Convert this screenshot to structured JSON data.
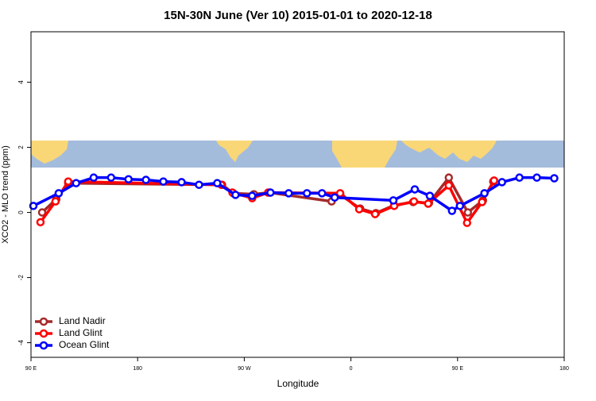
{
  "chart_data": {
    "type": "line",
    "title": "15N-30N June (Ver 10)   2015-01-01 to 2020-12-18",
    "x_label": "Longitude",
    "y_label": "XCO2 - MLO trend (ppm)",
    "xlim": [
      90,
      540
    ],
    "ylim": [
      -4.45,
      5.55
    ],
    "xticks": [
      {
        "value": 90,
        "label": "90 E"
      },
      180,
      {
        "value": 270,
        "label": "90 W"
      },
      {
        "value": 360,
        "label": "0"
      },
      {
        "value": 450,
        "label": "90 E"
      },
      {
        "value": 540,
        "label": "180"
      }
    ],
    "yticks": [
      -4,
      -2,
      0,
      2,
      4
    ],
    "legend": "bottom-left",
    "series": [
      {
        "name": "Land Nadir",
        "color": "#a52a2a",
        "x": [
          99.4,
          111.4,
          121.4,
          251.3,
          260.7,
          278.1,
          291.5,
          343.7,
          351.1,
          367.8,
          381.1,
          396.5,
          412.5,
          425.9,
          442.6,
          458.7,
          471.4,
          480.1
        ],
        "values": [
          0,
          0.41,
          0.9,
          0.85,
          0.59,
          0.56,
          0.61,
          0.34,
          0.54,
          0.12,
          -0.02,
          0.22,
          0.32,
          0.29,
          1.07,
          0,
          0.37,
          0.95
        ]
      },
      {
        "name": "Land Glint",
        "color": "#ff0000",
        "x": [
          98,
          110.7,
          121.4,
          250.6,
          260,
          276.7,
          290.1,
          350.9,
          367,
          380.4,
          396.5,
          413.2,
          425.2,
          442.6,
          458,
          470.7,
          480.8
        ],
        "values": [
          -0.3,
          0.34,
          0.95,
          0.85,
          0.61,
          0.44,
          0.61,
          0.59,
          0.1,
          -0.05,
          0.2,
          0.34,
          0.27,
          0.83,
          -0.32,
          0.32,
          0.98
        ]
      },
      {
        "name": "Ocean Glint",
        "color": "#0000ff",
        "x": [
          92,
          113.4,
          128.1,
          142.9,
          157.6,
          172.3,
          187,
          201.7,
          217.1,
          231.8,
          247.2,
          262.6,
          276.6,
          292.1,
          307.5,
          322.9,
          335.6,
          346.3,
          395.8,
          413.9,
          426.6,
          445.3,
          452,
          472.7,
          487.5,
          502.2,
          516.9,
          531.6
        ],
        "values": [
          0.2,
          0.59,
          0.9,
          1.07,
          1.07,
          1.02,
          1.0,
          0.95,
          0.93,
          0.85,
          0.9,
          0.54,
          0.51,
          0.61,
          0.59,
          0.59,
          0.59,
          0.46,
          0.37,
          0.71,
          0.51,
          0.05,
          0.2,
          0.59,
          0.93,
          1.07,
          1.07,
          1.05
        ]
      }
    ]
  }
}
